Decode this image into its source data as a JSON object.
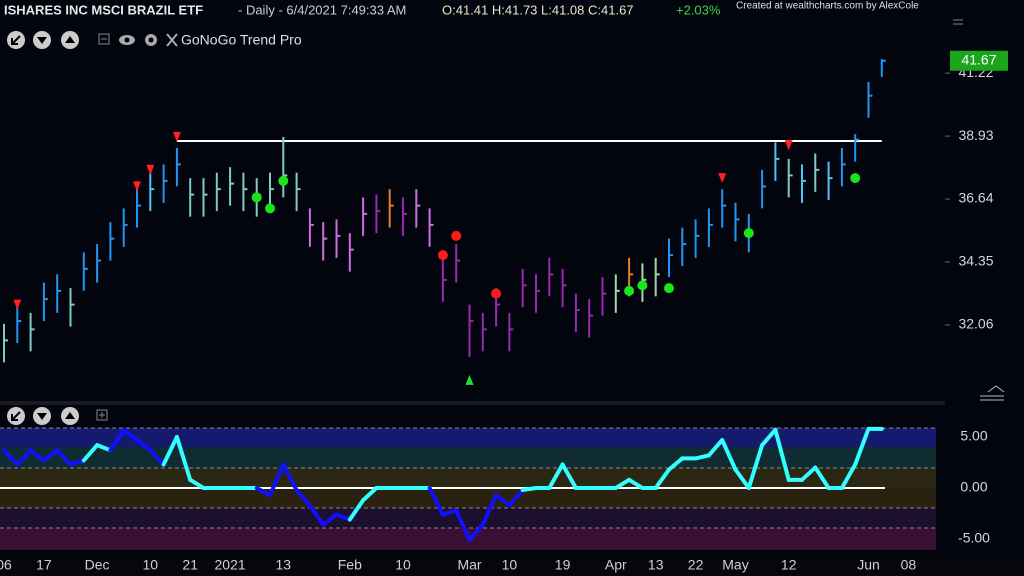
{
  "chart_data": [
    {
      "type": "ohlc",
      "title": "ISHARES INC MSCI BRAZIL ETF",
      "subtitle": "- Daily - 6/4/2021 7:49:33 AM",
      "ohlc_text": "O:41.41 H:41.73 L:41.08 C:41.67",
      "change": "+2.03%",
      "credit": "Created at wealthcharts.com by AlexCole",
      "indicator": "GoNoGo Trend Pro",
      "categories": [
        "06",
        null,
        null,
        "17",
        null,
        null,
        null,
        "Dec",
        null,
        null,
        null,
        "10",
        null,
        null,
        "21",
        null,
        null,
        "2021",
        null,
        null,
        null,
        "13",
        null,
        null,
        null,
        null,
        "Feb",
        null,
        null,
        null,
        "10",
        null,
        null,
        null,
        null,
        "Mar",
        null,
        null,
        "10",
        null,
        null,
        null,
        "19",
        null,
        null,
        null,
        "Apr",
        null,
        null,
        "13",
        null,
        null,
        "22",
        null,
        null,
        "May",
        null,
        null,
        null,
        "12",
        null,
        null,
        null,
        null,
        null,
        "Jun",
        null,
        null,
        "08"
      ],
      "high": [
        32.1,
        32.8,
        32.5,
        33.6,
        33.9,
        33.4,
        34.7,
        35.0,
        35.8,
        36.3,
        37.0,
        37.6,
        37.9,
        38.5,
        37.4,
        37.4,
        37.6,
        37.8,
        37.6,
        37.4,
        37.6,
        38.9,
        37.6,
        36.3,
        35.8,
        35.9,
        35.4,
        36.7,
        36.8,
        37.0,
        36.7,
        37.0,
        36.3,
        34.5,
        35.0,
        32.8,
        32.5,
        33.4,
        32.5,
        34.1,
        33.9,
        34.5,
        34.1,
        33.2,
        33.0,
        33.8,
        33.9,
        34.5,
        34.3,
        34.5,
        35.2,
        35.6,
        35.9,
        36.3,
        37.0,
        36.5,
        36.1,
        37.7,
        38.7,
        38.1,
        37.9,
        38.3,
        38.0,
        38.5,
        39.0,
        40.9,
        41.73,
        null,
        null
      ],
      "low": [
        30.7,
        31.4,
        31.1,
        32.2,
        32.5,
        32.0,
        33.3,
        33.6,
        34.4,
        34.9,
        35.6,
        36.2,
        36.5,
        37.1,
        36.0,
        36.0,
        36.2,
        36.4,
        36.2,
        36.0,
        36.2,
        36.7,
        36.2,
        34.9,
        34.4,
        34.5,
        34.0,
        35.3,
        35.4,
        35.6,
        35.3,
        35.6,
        34.9,
        32.9,
        33.6,
        30.9,
        31.1,
        32.0,
        31.1,
        32.7,
        32.5,
        33.1,
        32.7,
        31.8,
        31.6,
        32.4,
        32.5,
        33.1,
        32.9,
        33.1,
        33.8,
        34.2,
        34.5,
        34.9,
        35.6,
        35.1,
        34.7,
        36.3,
        37.3,
        36.7,
        36.5,
        36.9,
        36.6,
        37.1,
        38.0,
        39.6,
        41.08,
        null,
        null
      ],
      "close": [
        31.5,
        32.2,
        31.9,
        33.0,
        33.3,
        32.8,
        34.1,
        34.4,
        35.2,
        35.7,
        36.4,
        37.0,
        37.3,
        37.9,
        36.8,
        36.8,
        37.0,
        37.2,
        37.0,
        36.8,
        37.0,
        37.5,
        37.0,
        35.7,
        35.2,
        35.3,
        34.8,
        36.1,
        36.2,
        36.4,
        36.1,
        36.4,
        35.7,
        33.7,
        34.4,
        32.2,
        31.9,
        32.8,
        31.9,
        33.5,
        33.3,
        33.9,
        33.5,
        32.6,
        32.4,
        33.2,
        33.3,
        33.9,
        33.7,
        33.9,
        34.6,
        35.0,
        35.3,
        35.7,
        36.4,
        35.9,
        35.5,
        37.1,
        38.1,
        37.5,
        37.3,
        37.7,
        37.4,
        37.9,
        38.8,
        40.4,
        41.67,
        null,
        null
      ],
      "colors": [
        "#80cbc4",
        "#2196f3",
        "#80cbc4",
        "#2196f3",
        "#2196f3",
        "#80cbc4",
        "#2196f3",
        "#2196f3",
        "#2196f3",
        "#2196f3",
        "#2196f3",
        "#4fc3f7",
        "#2196f3",
        "#2196f3",
        "#80cbc4",
        "#80cbc4",
        "#80cbc4",
        "#80cbc4",
        "#80cbc4",
        "#80cbc4",
        "#80cbc4",
        "#80cbc4",
        "#80cbc4",
        "#ce6ee0",
        "#ce6ee0",
        "#ce6ee0",
        "#ce6ee0",
        "#ce6ee0",
        "#9c27b0",
        "#e67e22",
        "#9c27b0",
        "#ce6ee0",
        "#ce6ee0",
        "#9c27b0",
        "#9c27b0",
        "#9c27b0",
        "#9c27b0",
        "#9c27b0",
        "#9c27b0",
        "#9c27b0",
        "#9c27b0",
        "#9c27b0",
        "#9c27b0",
        "#9c27b0",
        "#9c27b0",
        "#9c27b0",
        "#a5d6a7",
        "#e67e22",
        "#a5d6a7",
        "#a5d6a7",
        "#2196f3",
        "#2196f3",
        "#2196f3",
        "#2196f3",
        "#2196f3",
        "#2196f3",
        "#2196f3",
        "#2196f3",
        "#4fc3f7",
        "#80cbc4",
        "#4fc3f7",
        "#80cbc4",
        "#4fc3f7",
        "#2196f3",
        "#2196f3",
        "#2196f3",
        "#2196f3",
        null,
        null
      ],
      "resistance": 38.75,
      "signals": [
        {
          "kind": "down",
          "index": 1,
          "price": 32.8
        },
        {
          "kind": "down",
          "index": 10,
          "price": 37.1
        },
        {
          "kind": "down",
          "index": 11,
          "price": 37.7
        },
        {
          "kind": "down",
          "index": 13,
          "price": 38.9
        },
        {
          "kind": "down",
          "index": 54,
          "price": 37.4
        },
        {
          "kind": "down",
          "index": 59,
          "price": 38.6
        },
        {
          "kind": "up",
          "index": 35,
          "price": 30.06
        },
        {
          "kind": "red-dot",
          "index": 33,
          "price": 34.6
        },
        {
          "kind": "red-dot",
          "index": 34,
          "price": 35.3
        },
        {
          "kind": "red-dot",
          "index": 37,
          "price": 33.2
        },
        {
          "kind": "green-dot",
          "index": 19,
          "price": 36.7
        },
        {
          "kind": "green-dot",
          "index": 20,
          "price": 36.3
        },
        {
          "kind": "green-dot",
          "index": 21,
          "price": 37.3
        },
        {
          "kind": "green-dot",
          "index": 47,
          "price": 33.3
        },
        {
          "kind": "green-dot",
          "index": 48,
          "price": 33.5
        },
        {
          "kind": "green-dot",
          "index": 50,
          "price": 33.4
        },
        {
          "kind": "green-dot",
          "index": 56,
          "price": 35.4
        },
        {
          "kind": "green-dot",
          "index": 64,
          "price": 37.4
        }
      ],
      "ylim": [
        29.33,
        43.88
      ],
      "yticks": [
        32.06,
        34.35,
        36.64,
        38.93,
        41.22
      ]
    },
    {
      "type": "oscillator",
      "values": [
        3.7,
        2.3,
        3.7,
        2.7,
        3.7,
        2.3,
        2.7,
        4.2,
        3.7,
        5.7,
        4.7,
        3.7,
        2.3,
        5.0,
        0.8,
        0,
        0,
        0,
        0,
        0,
        -0.7,
        2.3,
        -0.2,
        -1.7,
        -3.6,
        -2.6,
        -3.1,
        -1.2,
        0,
        0,
        0,
        0,
        0,
        -2.6,
        -2.2,
        -5.1,
        -3.6,
        -0.7,
        -1.7,
        -0.2,
        0,
        0,
        2.3,
        0,
        0,
        0,
        0,
        0.8,
        0,
        0,
        1.8,
        2.9,
        2.9,
        3.2,
        4.7,
        1.8,
        0,
        4.2,
        5.7,
        0.8,
        0.8,
        2.0,
        0,
        0,
        2.3,
        5.8,
        5.8,
        null,
        null
      ],
      "colors": [
        "#1010ff",
        "#1010ff",
        "#1010ff",
        "#1010ff",
        "#1010ff",
        "#1010ff",
        "#1010ff",
        "#33ffff",
        "#33ffff",
        "#1010ff",
        "#1010ff",
        "#1010ff",
        "#1010ff",
        "#33ffff",
        "#33ffff",
        "#33ffff",
        "#33ffff",
        "#33ffff",
        "#33ffff",
        "#33ffff",
        "#1010ff",
        "#1010ff",
        "#1010ff",
        "#1010ff",
        "#1010ff",
        "#1010ff",
        "#1010ff",
        "#33ffff",
        "#33ffff",
        "#33ffff",
        "#33ffff",
        "#33ffff",
        "#33ffff",
        "#1010ff",
        "#1010ff",
        "#1010ff",
        "#1010ff",
        "#1010ff",
        "#1010ff",
        "#1010ff",
        "#33ffff",
        "#33ffff",
        "#33ffff",
        "#33ffff",
        "#33ffff",
        "#33ffff",
        "#33ffff",
        "#33ffff",
        "#33ffff",
        "#33ffff",
        "#33ffff",
        "#33ffff",
        "#33ffff",
        "#33ffff",
        "#33ffff",
        "#33ffff",
        "#33ffff",
        "#33ffff",
        "#33ffff",
        "#33ffff",
        "#33ffff",
        "#33ffff",
        "#33ffff",
        "#33ffff",
        "#33ffff",
        "#33ffff",
        "#33ffff",
        null,
        null
      ],
      "ylim": [
        -6.08,
        5.88
      ],
      "yticks": [
        {
          "value": -5,
          "label": "-5.00"
        },
        {
          "value": 0,
          "label": "0.00"
        },
        {
          "value": 5,
          "label": "5.00"
        }
      ]
    }
  ]
}
